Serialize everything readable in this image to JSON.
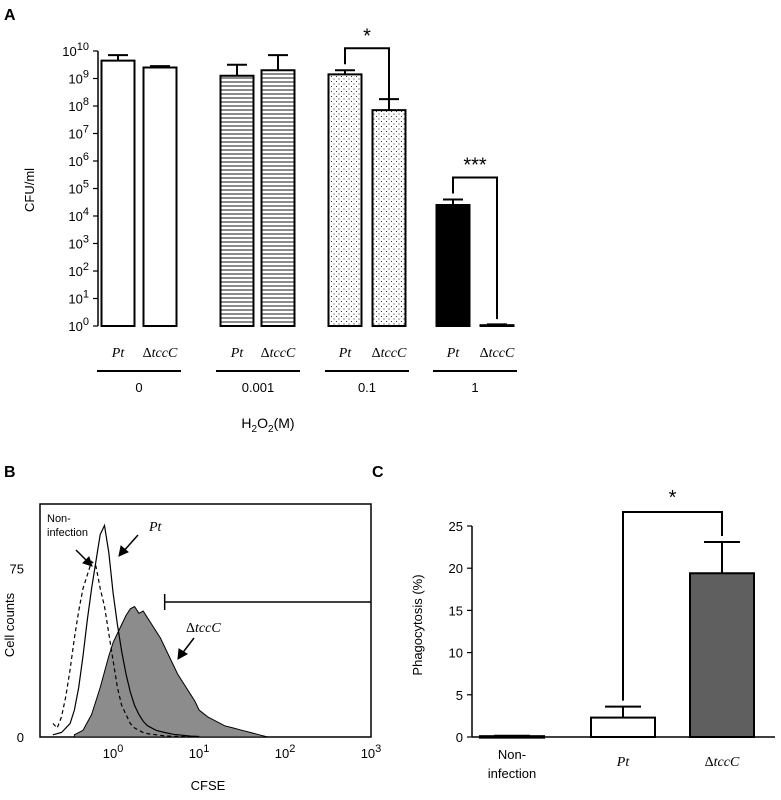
{
  "chart_data": [
    {
      "panel": "A",
      "type": "bar",
      "ylabel": "CFU/ml",
      "xlabel": "H2O2 (M)",
      "xlabel_main": "H",
      "xlabel_sub1": "2",
      "xlabel_mid": "O",
      "xlabel_sub2": "2",
      "xlabel_unit": "(M)",
      "y_scale": "log",
      "ylim_exp": [
        0,
        10
      ],
      "y_ticks": [
        {
          "base": "10",
          "exp": "0"
        },
        {
          "base": "10",
          "exp": "1"
        },
        {
          "base": "10",
          "exp": "2"
        },
        {
          "base": "10",
          "exp": "3"
        },
        {
          "base": "10",
          "exp": "4"
        },
        {
          "base": "10",
          "exp": "5"
        },
        {
          "base": "10",
          "exp": "6"
        },
        {
          "base": "10",
          "exp": "7"
        },
        {
          "base": "10",
          "exp": "8"
        },
        {
          "base": "10",
          "exp": "9"
        },
        {
          "base": "10",
          "exp": "10"
        }
      ],
      "groups": [
        "0",
        "0.001",
        "0.1",
        "1"
      ],
      "bars": [
        {
          "group": "0",
          "strain_sym": "",
          "strain": "Pt",
          "log10_value": 9.65,
          "log10_err": 0.2,
          "pattern": "white"
        },
        {
          "group": "0",
          "strain_sym": "Δ",
          "strain": "tccC",
          "log10_value": 9.4,
          "log10_err": 0.05,
          "pattern": "white"
        },
        {
          "group": "0.001",
          "strain_sym": "",
          "strain": "Pt",
          "log10_value": 9.1,
          "log10_err": 0.4,
          "pattern": "horizontal-lines"
        },
        {
          "group": "0.001",
          "strain_sym": "Δ",
          "strain": "tccC",
          "log10_value": 9.3,
          "log10_err": 0.55,
          "pattern": "horizontal-lines"
        },
        {
          "group": "0.1",
          "strain_sym": "",
          "strain": "Pt",
          "log10_value": 9.15,
          "log10_err": 0.15,
          "pattern": "dots"
        },
        {
          "group": "0.1",
          "strain_sym": "Δ",
          "strain": "tccC",
          "log10_value": 7.85,
          "log10_err": 0.4,
          "pattern": "dots"
        },
        {
          "group": "1",
          "strain_sym": "",
          "strain": "Pt",
          "log10_value": 4.4,
          "log10_err": 0.2,
          "pattern": "black"
        },
        {
          "group": "1",
          "strain_sym": "Δ",
          "strain": "tccC",
          "log10_value": 0.03,
          "log10_err": 0.03,
          "pattern": "black"
        }
      ],
      "significance": [
        {
          "group": "0.1",
          "label": "*"
        },
        {
          "group": "1",
          "label": "***"
        }
      ]
    },
    {
      "panel": "B",
      "type": "area",
      "ylabel": "Cell counts",
      "xlabel": "CFSE",
      "x_scale": "log",
      "x_ticks": [
        {
          "base": "10",
          "exp": "0"
        },
        {
          "base": "10",
          "exp": "1"
        },
        {
          "base": "10",
          "exp": "2"
        },
        {
          "base": "10",
          "exp": "3"
        }
      ],
      "y_ticks": [
        "0",
        "75"
      ],
      "annotations": [
        {
          "id": "non",
          "text_line1": "Non-",
          "text_line2": "infection"
        },
        {
          "id": "pt",
          "text": "Pt"
        },
        {
          "id": "dtcc",
          "sym": "Δ",
          "text": "tccC"
        }
      ],
      "series": [
        {
          "name": "Non-infection",
          "style": "dashed",
          "log10x": [
            -0.7,
            -0.65,
            -0.6,
            -0.55,
            -0.5,
            -0.45,
            -0.4,
            -0.35,
            -0.3,
            -0.25,
            -0.2,
            -0.15,
            -0.1,
            -0.05,
            0,
            0.05,
            0.1,
            0.15,
            0.2,
            0.25,
            0.3,
            0.35,
            0.4,
            0.5,
            0.6,
            0.7,
            0.85,
            1.0
          ],
          "counts": [
            6,
            4,
            9,
            18,
            30,
            44,
            56,
            66,
            72,
            78,
            76,
            66,
            58,
            46,
            34,
            22,
            14,
            10,
            6,
            4,
            3,
            2,
            1.5,
            1,
            0.5,
            0.3,
            0.2,
            0.1
          ]
        },
        {
          "name": "Pt",
          "style": "solid",
          "log10x": [
            -0.7,
            -0.6,
            -0.5,
            -0.45,
            -0.4,
            -0.35,
            -0.3,
            -0.25,
            -0.2,
            -0.15,
            -0.1,
            -0.05,
            0,
            0.05,
            0.1,
            0.15,
            0.2,
            0.25,
            0.3,
            0.35,
            0.4,
            0.5,
            0.6,
            0.7,
            0.8,
            0.9,
            1.0
          ],
          "counts": [
            1,
            2,
            6,
            12,
            22,
            36,
            52,
            66,
            78,
            90,
            94,
            82,
            64,
            50,
            38,
            28,
            20,
            14,
            10,
            7,
            5,
            3,
            2,
            1.2,
            0.8,
            0.4,
            0.2
          ]
        },
        {
          "name": "ΔtccC",
          "style": "filled",
          "log10x": [
            -0.45,
            -0.35,
            -0.25,
            -0.15,
            -0.05,
            0,
            0.05,
            0.1,
            0.15,
            0.2,
            0.25,
            0.3,
            0.35,
            0.4,
            0.45,
            0.5,
            0.55,
            0.6,
            0.65,
            0.7,
            0.75,
            0.8,
            0.85,
            0.9,
            0.95,
            1.0,
            1.1,
            1.2,
            1.3,
            1.4,
            1.5,
            1.6,
            1.7,
            1.8
          ],
          "counts": [
            1,
            3,
            10,
            22,
            36,
            42,
            46,
            50,
            54,
            57,
            58,
            55,
            56,
            53,
            50,
            47,
            44,
            40,
            36,
            32,
            28,
            25,
            22,
            19,
            16,
            12,
            9,
            7,
            5,
            4,
            3,
            2,
            1,
            0
          ]
        }
      ],
      "gate_x_log10": [
        0.6,
        3.0
      ],
      "gate_y": 60
    },
    {
      "panel": "C",
      "type": "bar",
      "ylabel": "Phagocytosis (%)",
      "ylim": [
        0,
        25
      ],
      "y_ticks": [
        "0",
        "5",
        "10",
        "15",
        "20",
        "25"
      ],
      "categories": [
        {
          "line1": "Non-",
          "line2": "infection",
          "sym": "",
          "italic": ""
        },
        {
          "line1": "",
          "line2": "",
          "sym": "",
          "italic": "Pt"
        },
        {
          "line1": "",
          "line2": "",
          "sym": "Δ",
          "italic": "tccC"
        }
      ],
      "values": [
        0.1,
        2.3,
        19.4
      ],
      "errors": [
        0.05,
        1.3,
        3.7
      ],
      "colors": [
        "#ffffff",
        "#ffffff",
        "#5f5f5f"
      ],
      "significance": [
        {
          "from": 1,
          "to": 2,
          "label": "*"
        }
      ]
    }
  ],
  "panel_labels": {
    "a": "A",
    "b": "B",
    "c": "C"
  }
}
